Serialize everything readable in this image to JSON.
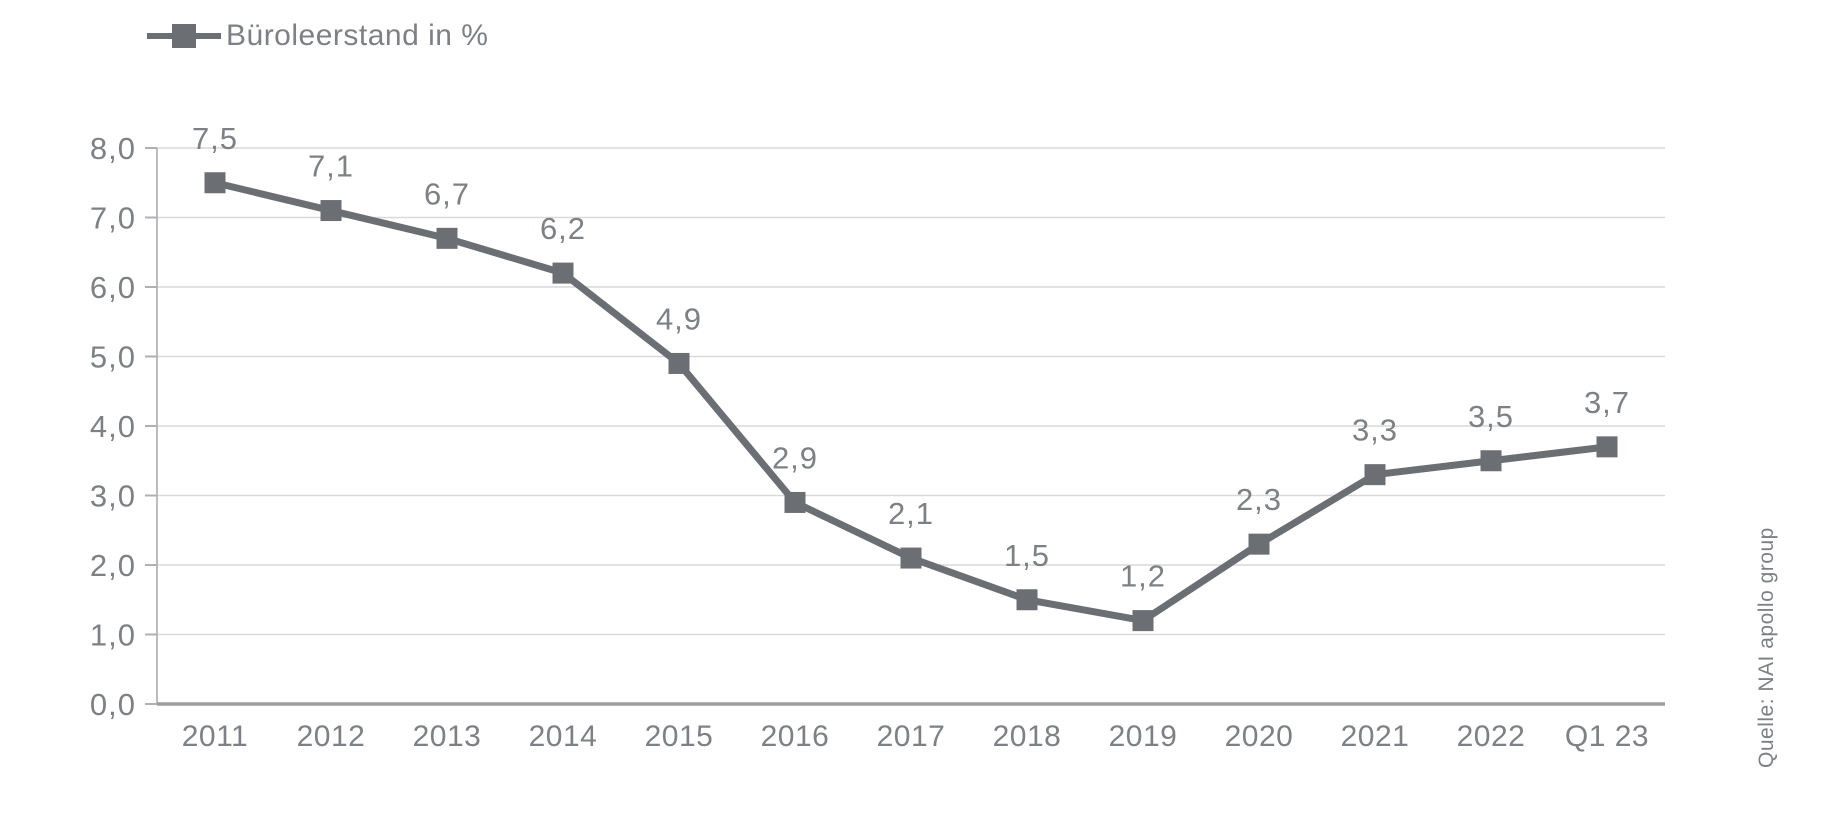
{
  "chart_data": {
    "type": "line",
    "title": "",
    "legend": {
      "label": "Büroleerstand in %",
      "position": "top-left"
    },
    "categories": [
      "2011",
      "2012",
      "2013",
      "2014",
      "2015",
      "2016",
      "2017",
      "2018",
      "2019",
      "2020",
      "2021",
      "2022",
      "Q1 23"
    ],
    "series": [
      {
        "name": "Büroleerstand in %",
        "values": [
          7.5,
          7.1,
          6.7,
          6.2,
          4.9,
          2.9,
          2.1,
          1.5,
          1.2,
          2.3,
          3.3,
          3.5,
          3.7
        ],
        "value_labels": [
          "7,5",
          "7,1",
          "6,7",
          "6,2",
          "4,9",
          "2,9",
          "2,1",
          "1,5",
          "1,2",
          "2,3",
          "3,3",
          "3,5",
          "3,7"
        ],
        "marker": "square",
        "color": "#6b6f74"
      }
    ],
    "ylim": [
      0,
      8
    ],
    "ytick_step": 1,
    "ytick_labels": [
      "0,0",
      "1,0",
      "2,0",
      "3,0",
      "4,0",
      "5,0",
      "6,0",
      "7,0",
      "8,0"
    ],
    "grid": "horizontal",
    "legend_marker": "line-with-square",
    "source": "Quelle: NAI apollo group"
  },
  "colors": {
    "background": "#ffffff",
    "series": "#6b6f74",
    "text": "#7d8084",
    "gridline": "#d9d9d9",
    "x_axis": "#9b9ea1",
    "y_axis": "#babcbe",
    "tick": "#aeb0b3"
  }
}
